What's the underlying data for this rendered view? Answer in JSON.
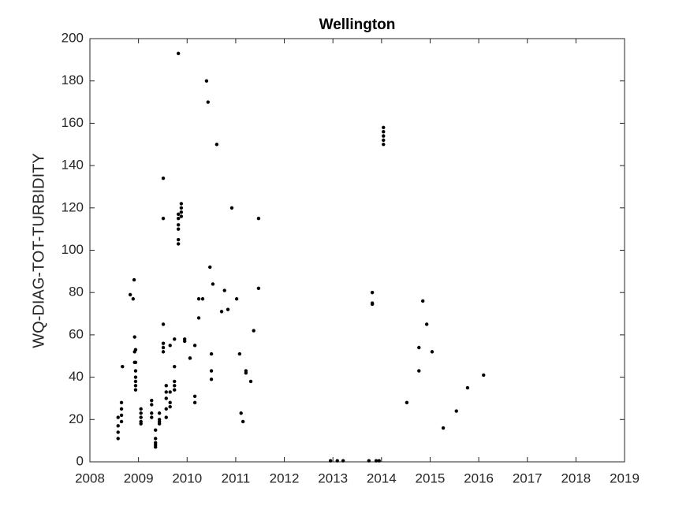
{
  "chart_data": {
    "type": "scatter",
    "title": "Wellington",
    "ylabel": "WQ-DIAG-TOT-TURBIDITY",
    "color": "#000000",
    "x": [
      2008.58,
      2008.58,
      2008.58,
      2008.58,
      2008.65,
      2008.65,
      2008.65,
      2008.65,
      2008.67,
      2008.83,
      2008.89,
      2008.91,
      2008.92,
      2008.92,
      2008.92,
      2008.94,
      2008.94,
      2008.94,
      2008.94,
      2008.94,
      2008.94,
      2008.94,
      2009.05,
      2009.05,
      2009.05,
      2009.05,
      2009.05,
      2009.27,
      2009.27,
      2009.27,
      2009.27,
      2009.35,
      2009.35,
      2009.35,
      2009.35,
      2009.35,
      2009.43,
      2009.43,
      2009.43,
      2009.43,
      2009.51,
      2009.51,
      2009.51,
      2009.51,
      2009.51,
      2009.51,
      2009.57,
      2009.57,
      2009.57,
      2009.57,
      2009.57,
      2009.65,
      2009.65,
      2009.65,
      2009.65,
      2009.74,
      2009.74,
      2009.74,
      2009.74,
      2009.74,
      2009.82,
      2009.82,
      2009.82,
      2009.82,
      2009.82,
      2009.82,
      2009.82,
      2009.88,
      2009.88,
      2009.88,
      2009.88,
      2009.95,
      2009.95,
      2010.06,
      2010.06,
      2010.16,
      2010.16,
      2010.16,
      2010.24,
      2010.24,
      2010.32,
      2010.4,
      2010.43,
      2010.47,
      2010.5,
      2010.5,
      2010.5,
      2010.53,
      2010.61,
      2010.71,
      2010.77,
      2010.84,
      2010.92,
      2011.02,
      2011.08,
      2011.11,
      2011.15,
      2011.21,
      2011.21,
      2011.31,
      2011.37,
      2011.47,
      2011.47,
      2012.95,
      2013.09,
      2013.21,
      2013.74,
      2013.81,
      2013.81,
      2013.81,
      2013.89,
      2013.95,
      2014.04,
      2014.04,
      2014.04,
      2014.04,
      2014.04,
      2014.52,
      2014.77,
      2014.77,
      2014.85,
      2014.93,
      2015.04,
      2015.27,
      2015.54,
      2015.77,
      2016.1
    ],
    "values": [
      11,
      14,
      17,
      21,
      19,
      22,
      25,
      28,
      45,
      79,
      77,
      86,
      59,
      52,
      47,
      47,
      43,
      40,
      38,
      36,
      34,
      53,
      25,
      23,
      21,
      19,
      18,
      29,
      27,
      23,
      21,
      15,
      11,
      9,
      8,
      7,
      23,
      20,
      19,
      18,
      134,
      115,
      65,
      56,
      54,
      52,
      21,
      25,
      30,
      33,
      36,
      55,
      33,
      28,
      26,
      58,
      45,
      38,
      36,
      34,
      193,
      117,
      115,
      112,
      110,
      105,
      103,
      122,
      120,
      118,
      116,
      57,
      58,
      49,
      49,
      31,
      28,
      55,
      77,
      68,
      77,
      180,
      170,
      92,
      43,
      39,
      51,
      84,
      150,
      71,
      81,
      72,
      120,
      77,
      51,
      23,
      19,
      42,
      43,
      38,
      62,
      115,
      82,
      0.5,
      0.5,
      0.5,
      0.5,
      80,
      75,
      74.5,
      0.5,
      0.5,
      158,
      156,
      154,
      152,
      150,
      28,
      54,
      43,
      76,
      65,
      52,
      16,
      24,
      35,
      41
    ],
    "xlim": [
      2008,
      2019
    ],
    "xticks": [
      2008,
      2009,
      2010,
      2011,
      2012,
      2013,
      2014,
      2015,
      2016,
      2017,
      2018,
      2019
    ],
    "ylim": [
      0,
      200
    ],
    "yticks": [
      0,
      20,
      40,
      60,
      80,
      100,
      120,
      140,
      160,
      180,
      200
    ]
  }
}
